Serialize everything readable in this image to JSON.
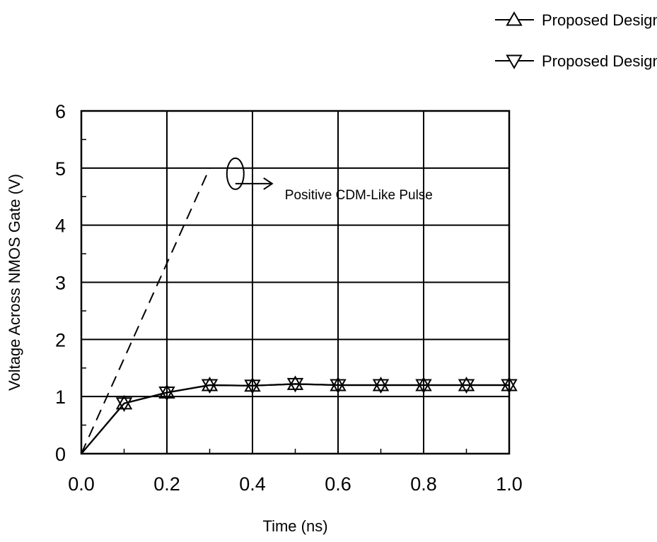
{
  "chart_data": {
    "type": "line",
    "title": "",
    "xlabel": "Time (ns)",
    "ylabel": "Voltage Across NMOS Gate (V)",
    "xlim": [
      0.0,
      1.0
    ],
    "ylim": [
      0,
      6
    ],
    "x_ticks": [
      "0.0",
      "0.2",
      "0.4",
      "0.6",
      "0.8",
      "1.0"
    ],
    "y_ticks": [
      "0",
      "1",
      "2",
      "3",
      "4",
      "5",
      "6"
    ],
    "grid": true,
    "legend_position": "top-right",
    "series": [
      {
        "name": "Proposed Design A",
        "marker": "triangle-up",
        "x": [
          0.0,
          0.1,
          0.2,
          0.3,
          0.4,
          0.5,
          0.6,
          0.7,
          0.8,
          0.9,
          1.0
        ],
        "y": [
          0.0,
          0.88,
          1.07,
          1.2,
          1.19,
          1.22,
          1.2,
          1.2,
          1.2,
          1.2,
          1.2
        ]
      },
      {
        "name": "Proposed Design B",
        "marker": "triangle-down",
        "x": [
          0.0,
          0.1,
          0.2,
          0.3,
          0.4,
          0.5,
          0.6,
          0.7,
          0.8,
          0.9,
          1.0
        ],
        "y": [
          0.0,
          0.88,
          1.07,
          1.2,
          1.19,
          1.22,
          1.2,
          1.2,
          1.2,
          1.2,
          1.2
        ]
      }
    ],
    "pulse": {
      "label": "Positive CDM-Like Pulse",
      "style": "dashed",
      "x": [
        0.0,
        0.3
      ],
      "y": [
        0.0,
        5.0
      ]
    }
  }
}
